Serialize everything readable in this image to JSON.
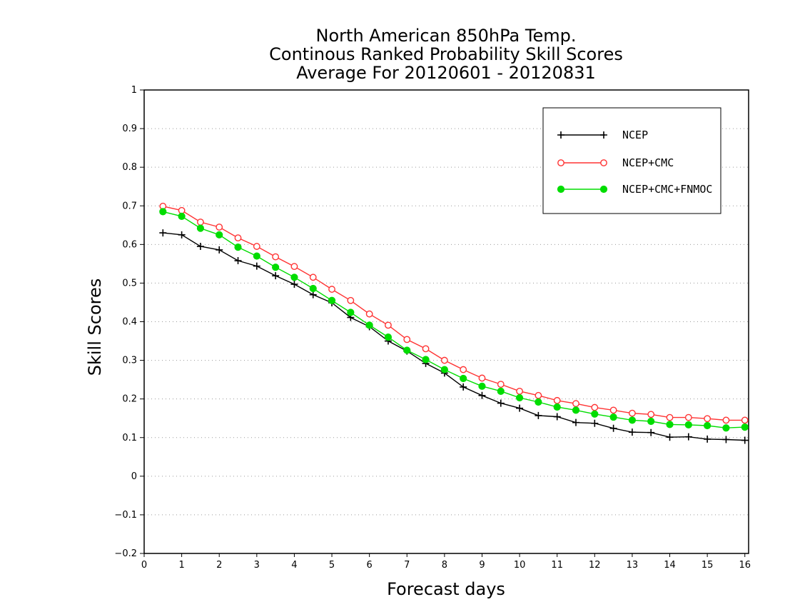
{
  "chart_data": {
    "type": "line",
    "title": [
      "North American 850hPa Temp.",
      "Continous Ranked Probability Skill Scores",
      "Average For 20120601 - 20120831"
    ],
    "xlabel": "Forecast days",
    "ylabel": "Skill Scores",
    "xlim": [
      0,
      16.1
    ],
    "ylim": [
      -0.2,
      1
    ],
    "xticks": [
      0,
      1,
      2,
      3,
      4,
      5,
      6,
      7,
      8,
      9,
      10,
      11,
      12,
      13,
      14,
      15,
      16
    ],
    "yticks": [
      -0.2,
      -0.1,
      0,
      0.1,
      0.2,
      0.3,
      0.4,
      0.5,
      0.6,
      0.7,
      0.8,
      0.9,
      1
    ],
    "grid": "horizontal dotted",
    "legend_position": "top-right",
    "x": [
      0.5,
      1,
      1.5,
      2,
      2.5,
      3,
      3.5,
      4,
      4.5,
      5,
      5.5,
      6,
      6.5,
      7,
      7.5,
      8,
      8.5,
      9,
      9.5,
      10,
      10.5,
      11,
      11.5,
      12,
      12.5,
      13,
      13.5,
      14,
      14.5,
      15,
      15.5,
      16
    ],
    "series": [
      {
        "name": "NCEP",
        "color": "#000000",
        "marker": "plus",
        "values": [
          0.63,
          0.625,
          0.595,
          0.586,
          0.558,
          0.544,
          0.519,
          0.497,
          0.47,
          0.449,
          0.411,
          0.387,
          0.35,
          0.324,
          0.292,
          0.267,
          0.231,
          0.209,
          0.189,
          0.176,
          0.157,
          0.154,
          0.139,
          0.137,
          0.124,
          0.114,
          0.113,
          0.101,
          0.102,
          0.096,
          0.095,
          0.093
        ]
      },
      {
        "name": "NCEP+CMC",
        "color": "#ff3333",
        "marker": "open-circle",
        "values": [
          0.699,
          0.688,
          0.658,
          0.645,
          0.617,
          0.595,
          0.568,
          0.543,
          0.515,
          0.484,
          0.455,
          0.42,
          0.391,
          0.354,
          0.33,
          0.3,
          0.276,
          0.254,
          0.238,
          0.22,
          0.209,
          0.196,
          0.188,
          0.178,
          0.171,
          0.163,
          0.16,
          0.152,
          0.152,
          0.149,
          0.145,
          0.145
        ]
      },
      {
        "name": "NCEP+CMC+FNMOC",
        "color": "#00dd00",
        "marker": "filled-circle",
        "values": [
          0.685,
          0.673,
          0.642,
          0.625,
          0.593,
          0.57,
          0.541,
          0.515,
          0.486,
          0.455,
          0.424,
          0.391,
          0.36,
          0.326,
          0.302,
          0.276,
          0.253,
          0.233,
          0.22,
          0.203,
          0.192,
          0.179,
          0.171,
          0.161,
          0.153,
          0.145,
          0.142,
          0.134,
          0.133,
          0.131,
          0.125,
          0.127
        ]
      }
    ]
  }
}
